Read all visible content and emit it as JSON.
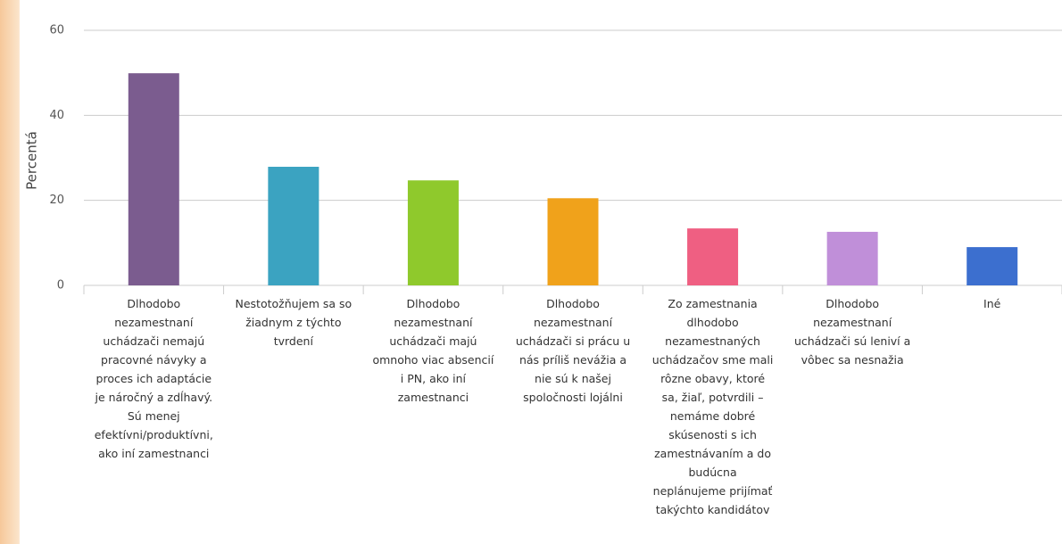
{
  "chart_data": {
    "type": "bar",
    "y_label": "Percentá",
    "categories": [
      "Dlhodobo nezamestnaní uchádzači nemajú pracovné návyky a proces ich adaptácie je náročný a zdĺhavý. Sú menej efektívni/produktívni, ako iní zamestnanci",
      "Nestotožňujem sa so žiadnym z týchto tvrdení",
      "Dlhodobo nezamestnaní uchádzači majú omnoho viac absencií i PN, ako iní zamestnanci",
      "Dlhodobo nezamestnaní uchádzači si prácu u nás príliš nevážia a nie sú k našej spoločnosti lojálni",
      "Zo zamestnania dlhodobo nezamestnaných uchádzačov sme mali rôzne obavy, ktoré sa, žiaľ, potvrdili – nemáme dobré skúsenosti s ich zamestnávaním a do budúcna neplánujeme prijímať takýchto kandidátov",
      "Dlhodobo nezamestnaní uchádzači sú leniví a vôbec sa nesnažia",
      "Iné"
    ],
    "values": [
      49.9,
      27.9,
      24.7,
      20.5,
      13.4,
      12.6,
      9.0
    ],
    "colors": [
      "#7b5c8f",
      "#3ba3c1",
      "#8fc92c",
      "#f0a21b",
      "#ef5f82",
      "#c08fd9",
      "#3c6fcf"
    ],
    "ylim": [
      0,
      60
    ],
    "yticks": [
      0,
      20,
      40,
      60
    ],
    "grid": true
  }
}
